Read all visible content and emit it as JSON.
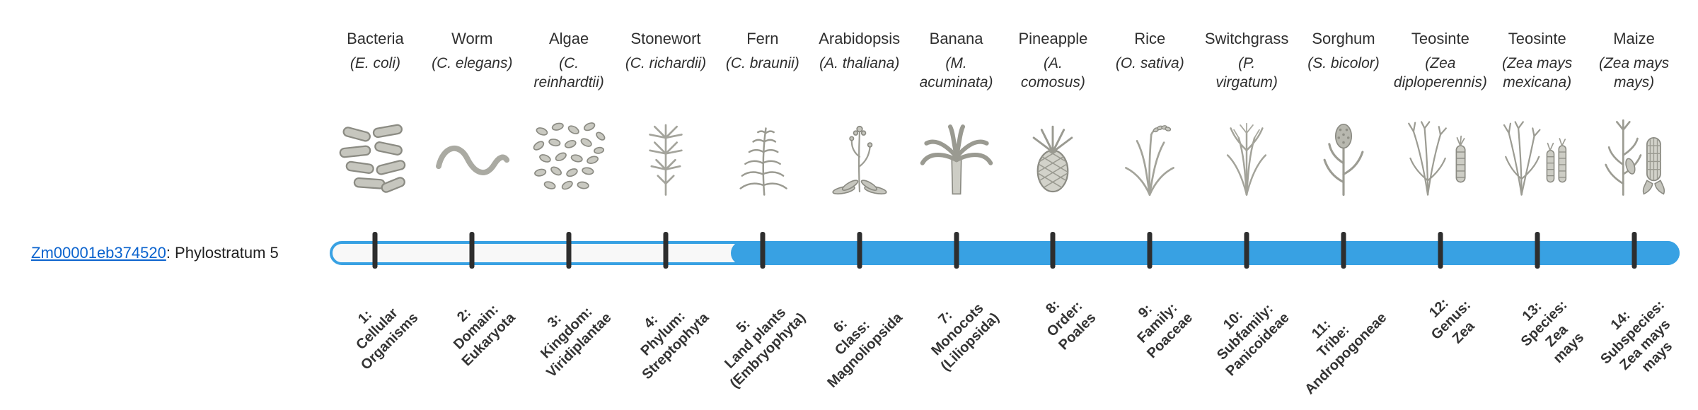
{
  "gene": {
    "id": "Zm00001eb374520",
    "suffix": ": Phylostratum 5",
    "phylostratum": 5
  },
  "colors": {
    "bar_fill": "#38a1e3",
    "bar_empty": "#f8f8f8",
    "tick": "#2e2e2e",
    "link": "#0b63ce",
    "text": "#333333"
  },
  "columns": [
    {
      "name": "Bacteria",
      "sci": "(E. coli)",
      "icon": "bacteria",
      "label": "1:\nCellular\nOrganisms"
    },
    {
      "name": "Worm",
      "sci": "(C. elegans)",
      "icon": "worm",
      "label": "2:\nDomain:\nEukaryota"
    },
    {
      "name": "Algae",
      "sci": "(C.\nreinhardtii)",
      "icon": "algae",
      "label": "3:\nKingdom:\nViridiplantae"
    },
    {
      "name": "Stonewort",
      "sci": "(C. richardii)",
      "icon": "stonewort",
      "label": "4:\nPhylum:\nStreptophyta"
    },
    {
      "name": "Fern",
      "sci": "(C. braunii)",
      "icon": "fern",
      "label": "5:\nLand plants\n(Embryophyta)"
    },
    {
      "name": "Arabidopsis",
      "sci": "(A. thaliana)",
      "icon": "arabidopsis",
      "label": "6:\nClass:\nMagnoliopsida"
    },
    {
      "name": "Banana",
      "sci": "(M.\nacuminata)",
      "icon": "banana",
      "label": "7:\nMonocots\n(Liliopsida)"
    },
    {
      "name": "Pineapple",
      "sci": "(A.\ncomosus)",
      "icon": "pineapple",
      "label": "8:\nOrder:\nPoales"
    },
    {
      "name": "Rice",
      "sci": "(O. sativa)",
      "icon": "rice",
      "label": "9:\nFamily:\nPoaceae"
    },
    {
      "name": "Switchgrass",
      "sci": "(P.\nvirgatum)",
      "icon": "switchgrass",
      "label": "10:\nSubfamily:\nPanicoideae"
    },
    {
      "name": "Sorghum",
      "sci": "(S. bicolor)",
      "icon": "sorghum",
      "label": "11:\nTribe:\nAndropogoneae"
    },
    {
      "name": "Teosinte",
      "sci": "(Zea\ndiploperennis)",
      "icon": "teosinte-diploperennis",
      "label": "12:\nGenus:\nZea"
    },
    {
      "name": "Teosinte",
      "sci": "(Zea mays\nmexicana)",
      "icon": "teosinte-mexicana",
      "label": "13:\nSpecies:\nZea\nmays"
    },
    {
      "name": "Maize",
      "sci": "(Zea mays\nmays)",
      "icon": "maize",
      "label": "14:\nSubspecies:\nZea mays\nmays"
    }
  ]
}
